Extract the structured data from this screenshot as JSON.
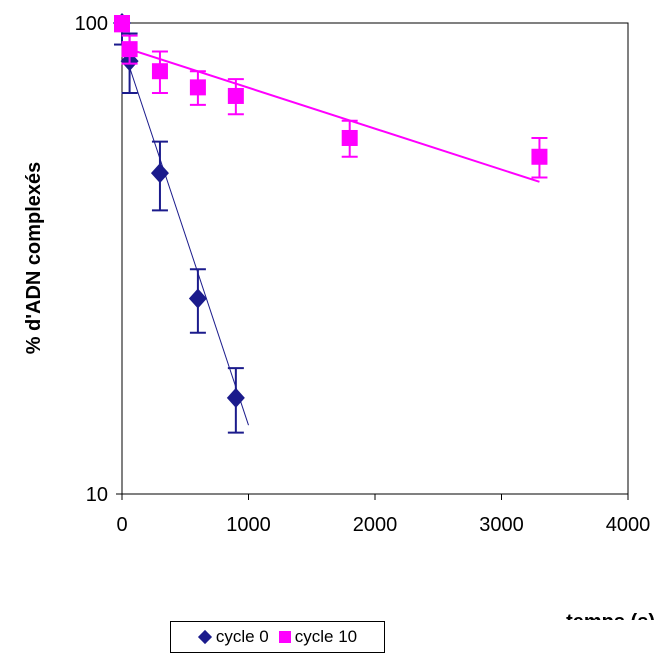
{
  "chart_data": {
    "type": "scatter",
    "xlabel": "temps (s)",
    "ylabel": "% d'ADN complexés",
    "xlim": [
      0,
      4000
    ],
    "ylim": [
      10,
      100
    ],
    "yscale": "log",
    "x_ticks": [
      "0",
      "1000",
      "2000",
      "3000",
      "4000"
    ],
    "y_ticks": [
      "10",
      "100"
    ],
    "grid": false,
    "legend_position": "bottom",
    "series": [
      {
        "name": "cycle 0",
        "color": "#1b1b8c",
        "marker": "diamond",
        "x": [
          0,
          60,
          300,
          600,
          900
        ],
        "y": [
          100,
          83,
          48,
          26,
          16
        ],
        "err": [
          10,
          12,
          8,
          4,
          2.5
        ],
        "trendline": {
          "x": [
            0,
            1000
          ],
          "y": [
            90,
            14
          ]
        }
      },
      {
        "name": "cycle 10",
        "color": "#ff00ff",
        "marker": "square",
        "x": [
          0,
          60,
          300,
          600,
          900,
          1800,
          3300
        ],
        "y": [
          100,
          88,
          79,
          73,
          70,
          57,
          52
        ],
        "err": [
          4,
          6,
          8,
          6,
          6,
          5,
          5
        ],
        "trendline": {
          "x": [
            0,
            3300
          ],
          "y": [
            89,
            46
          ]
        }
      }
    ]
  }
}
